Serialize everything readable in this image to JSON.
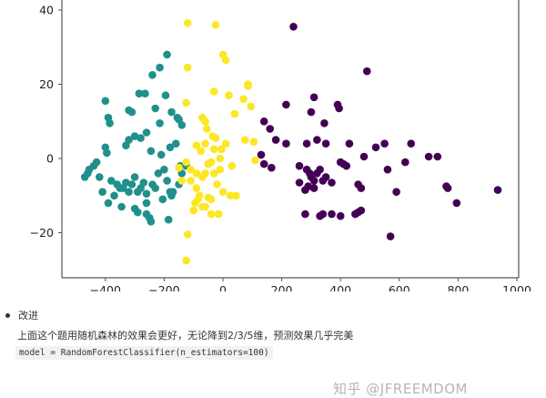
{
  "chart_data": {
    "type": "scatter",
    "title": "",
    "xlabel": "",
    "ylabel": "",
    "xlim": [
      -540,
      1000
    ],
    "ylim": [
      -32,
      42
    ],
    "x_ticks": [
      -400,
      -200,
      0,
      200,
      400,
      600,
      800,
      1000
    ],
    "y_ticks": [
      -20,
      0,
      20,
      40
    ],
    "grid": false,
    "legend": null,
    "series": [
      {
        "name": "class-0 (purple)",
        "color": "#440154",
        "points": [
          [
            240,
            35.5
          ],
          [
            490,
            23.5
          ],
          [
            390,
            14.5
          ],
          [
            395,
            13.5
          ],
          [
            310,
            16.5
          ],
          [
            215,
            14.5
          ],
          [
            140,
            10
          ],
          [
            300,
            12.5
          ],
          [
            160,
            8
          ],
          [
            180,
            5
          ],
          [
            215,
            4
          ],
          [
            345,
            9.5
          ],
          [
            320,
            5
          ],
          [
            285,
            4
          ],
          [
            350,
            4
          ],
          [
            430,
            4
          ],
          [
            520,
            3
          ],
          [
            550,
            4
          ],
          [
            640,
            4
          ],
          [
            700,
            0.5
          ],
          [
            730,
            0.5
          ],
          [
            130,
            1
          ],
          [
            140,
            -1.5
          ],
          [
            165,
            -2.5
          ],
          [
            260,
            -2
          ],
          [
            285,
            -3
          ],
          [
            295,
            -4
          ],
          [
            300,
            -5
          ],
          [
            310,
            -6
          ],
          [
            320,
            -4
          ],
          [
            330,
            -3
          ],
          [
            350,
            -5
          ],
          [
            400,
            -1
          ],
          [
            420,
            -2
          ],
          [
            260,
            -6.5
          ],
          [
            280,
            -8.5
          ],
          [
            290,
            -7.5
          ],
          [
            310,
            -8
          ],
          [
            340,
            -6
          ],
          [
            370,
            -6.5
          ],
          [
            460,
            -7
          ],
          [
            470,
            -8
          ],
          [
            280,
            -15
          ],
          [
            330,
            -15.5
          ],
          [
            340,
            -15
          ],
          [
            370,
            -15
          ],
          [
            400,
            -15.5
          ],
          [
            450,
            -15
          ],
          [
            460,
            -14.5
          ],
          [
            470,
            -14
          ],
          [
            570,
            -21
          ],
          [
            760,
            -7.5
          ],
          [
            765,
            -8
          ],
          [
            795,
            -12
          ],
          [
            935,
            -8.5
          ],
          [
            480,
            0.5
          ],
          [
            560,
            -3
          ],
          [
            410,
            -1.5
          ],
          [
            620,
            -1
          ],
          [
            590,
            -9
          ]
        ]
      },
      {
        "name": "class-1 (teal)",
        "color": "#21908c",
        "points": [
          [
            -190,
            28
          ],
          [
            -215,
            24.5
          ],
          [
            -240,
            22.5
          ],
          [
            -265,
            17.5
          ],
          [
            -285,
            17.5
          ],
          [
            -195,
            17
          ],
          [
            -400,
            15.5
          ],
          [
            -390,
            11
          ],
          [
            -385,
            9.5
          ],
          [
            -320,
            13
          ],
          [
            -310,
            12.5
          ],
          [
            -230,
            13.5
          ],
          [
            -175,
            12.5
          ],
          [
            -150,
            10.5
          ],
          [
            -140,
            9
          ],
          [
            -155,
            11
          ],
          [
            -215,
            9.5
          ],
          [
            -260,
            7
          ],
          [
            -300,
            6
          ],
          [
            -320,
            5
          ],
          [
            -330,
            3.5
          ],
          [
            -280,
            5.5
          ],
          [
            -245,
            2
          ],
          [
            -210,
            1
          ],
          [
            -180,
            3
          ],
          [
            -160,
            4
          ],
          [
            -400,
            3
          ],
          [
            -395,
            1.5
          ],
          [
            -430,
            -1
          ],
          [
            -440,
            -2
          ],
          [
            -460,
            -4
          ],
          [
            -455,
            -3
          ],
          [
            -420,
            -5
          ],
          [
            -380,
            -6
          ],
          [
            -360,
            -7
          ],
          [
            -340,
            -8
          ],
          [
            -330,
            -6.5
          ],
          [
            -320,
            -9
          ],
          [
            -310,
            -7
          ],
          [
            -300,
            -5
          ],
          [
            -290,
            -9
          ],
          [
            -280,
            -8
          ],
          [
            -270,
            -6.5
          ],
          [
            -260,
            -9.5
          ],
          [
            -240,
            -7
          ],
          [
            -230,
            -8
          ],
          [
            -220,
            -4
          ],
          [
            -200,
            -3
          ],
          [
            -190,
            -6
          ],
          [
            -180,
            -9
          ],
          [
            -170,
            -9
          ],
          [
            -150,
            -7
          ],
          [
            -140,
            -4
          ],
          [
            -145,
            -2
          ],
          [
            -350,
            -8
          ],
          [
            -370,
            -10
          ],
          [
            -390,
            -12
          ],
          [
            -345,
            -13
          ],
          [
            -290,
            -14.5
          ],
          [
            -260,
            -15
          ],
          [
            -250,
            -16
          ],
          [
            -245,
            -17
          ],
          [
            -185,
            -16.5
          ],
          [
            -300,
            -13.5
          ],
          [
            -260,
            -12
          ],
          [
            -410,
            -9
          ],
          [
            -470,
            -5
          ],
          [
            -125,
            -2
          ],
          [
            -175,
            -10
          ],
          [
            -205,
            -11
          ]
        ]
      },
      {
        "name": "class-2 (yellow)",
        "color": "#fde725",
        "points": [
          [
            -120,
            36.5
          ],
          [
            -25,
            36
          ],
          [
            0,
            28
          ],
          [
            10,
            26.5
          ],
          [
            -120,
            24.5
          ],
          [
            85,
            20
          ],
          [
            -30,
            18
          ],
          [
            85,
            19.5
          ],
          [
            70,
            16
          ],
          [
            20,
            17
          ],
          [
            -125,
            15
          ],
          [
            95,
            14
          ],
          [
            40,
            12
          ],
          [
            -70,
            11
          ],
          [
            -55,
            8
          ],
          [
            -60,
            10
          ],
          [
            -35,
            6
          ],
          [
            -90,
            3.5
          ],
          [
            -60,
            4
          ],
          [
            -30,
            2.5
          ],
          [
            -75,
            2
          ],
          [
            -25,
            5.5
          ],
          [
            -5,
            2.5
          ],
          [
            10,
            4
          ],
          [
            -10,
            0
          ],
          [
            -40,
            -1
          ],
          [
            -50,
            -1.5
          ],
          [
            -125,
            -1
          ],
          [
            -110,
            -3
          ],
          [
            -90,
            -4
          ],
          [
            -70,
            -5
          ],
          [
            -60,
            -4
          ],
          [
            -30,
            -4
          ],
          [
            -20,
            -7
          ],
          [
            -10,
            -3
          ],
          [
            -110,
            -6
          ],
          [
            -90,
            -8
          ],
          [
            -80,
            -10
          ],
          [
            -50,
            -10.5
          ],
          [
            -40,
            -11
          ],
          [
            -70,
            -13
          ],
          [
            -60,
            -13
          ],
          [
            -95,
            -12
          ],
          [
            -85,
            -11
          ],
          [
            25,
            -10
          ],
          [
            -40,
            -15
          ],
          [
            -15,
            -15
          ],
          [
            45,
            -10
          ],
          [
            75,
            5
          ],
          [
            105,
            4.5
          ],
          [
            110,
            -0.5
          ],
          [
            -120,
            -20.5
          ],
          [
            -125,
            -27.5
          ],
          [
            -150,
            -2.5
          ],
          [
            -140,
            -6
          ],
          [
            -100,
            -14
          ],
          [
            0,
            -9
          ],
          [
            30,
            -2
          ]
        ]
      }
    ]
  },
  "note": {
    "bullet_label": "改进",
    "description": "上面这个题用随机森林的效果会更好，无论降到2/3/5维，预测效果几乎完美",
    "code": "model = RandomForestClassifier(n_estimators=100)"
  },
  "watermark": "知乎 @JFREEMDOM"
}
